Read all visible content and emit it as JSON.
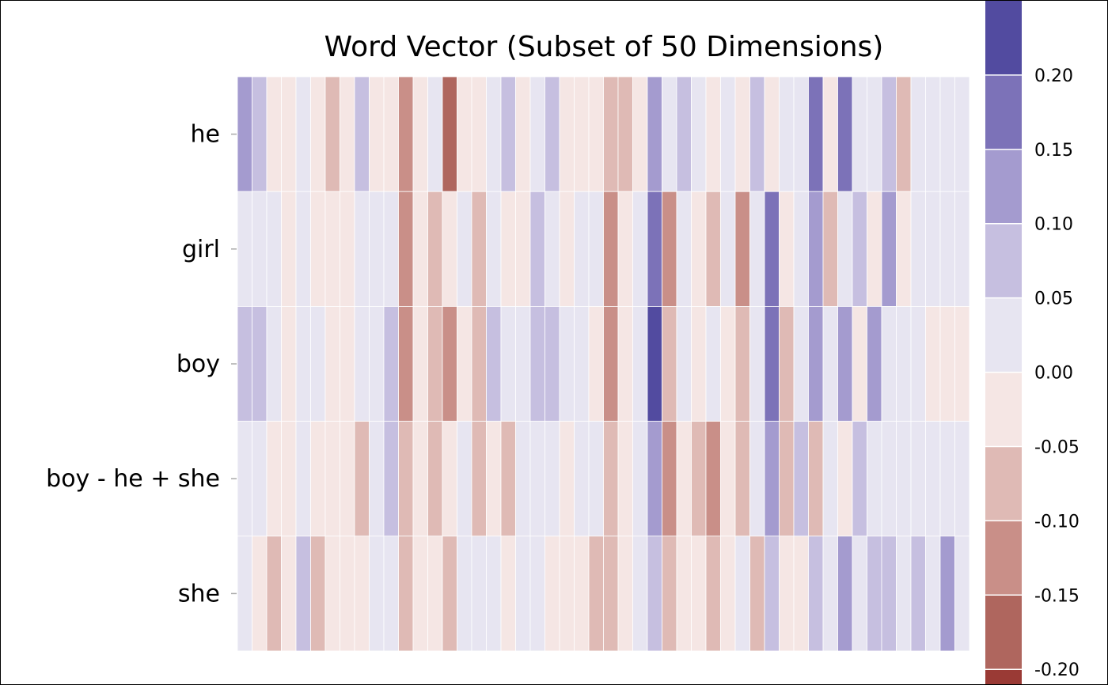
{
  "chart_data": {
    "type": "heatmap",
    "title": "Word Vector (Subset of 50 Dimensions)",
    "rows": [
      "he",
      "girl",
      "boy",
      "boy - he + she",
      "she"
    ],
    "n_dimensions": 50,
    "values": [
      [
        0.12,
        0.07,
        -0.03,
        -0.03,
        0.03,
        -0.03,
        -0.08,
        -0.03,
        0.07,
        -0.03,
        -0.03,
        -0.12,
        -0.03,
        0.03,
        -0.19,
        -0.03,
        -0.03,
        0.03,
        0.07,
        -0.03,
        0.03,
        0.07,
        -0.03,
        -0.03,
        -0.03,
        -0.08,
        -0.08,
        -0.03,
        0.12,
        0.03,
        0.07,
        0.03,
        -0.03,
        0.03,
        -0.03,
        0.07,
        -0.03,
        0.03,
        0.03,
        0.17,
        -0.03,
        0.17,
        0.03,
        0.03,
        0.07,
        -0.08,
        0.03,
        0.03,
        0.03,
        0.03
      ],
      [
        0.03,
        0.03,
        0.03,
        -0.03,
        0.03,
        -0.03,
        -0.03,
        -0.03,
        0.03,
        0.03,
        0.03,
        -0.12,
        -0.03,
        -0.08,
        -0.03,
        0.03,
        -0.08,
        0.03,
        -0.03,
        -0.03,
        0.07,
        0.03,
        -0.03,
        0.03,
        0.03,
        -0.12,
        -0.03,
        0.03,
        0.17,
        -0.12,
        0.03,
        -0.03,
        -0.08,
        0.03,
        -0.12,
        0.03,
        0.17,
        -0.03,
        0.03,
        0.12,
        -0.08,
        0.03,
        0.07,
        -0.03,
        0.12,
        -0.03,
        0.03,
        0.03,
        0.03,
        0.03
      ],
      [
        0.07,
        0.07,
        0.03,
        -0.03,
        0.03,
        0.03,
        -0.03,
        -0.03,
        0.03,
        0.03,
        0.07,
        -0.12,
        -0.03,
        -0.08,
        -0.12,
        -0.03,
        -0.08,
        0.07,
        0.03,
        0.03,
        0.07,
        0.07,
        0.03,
        0.03,
        -0.03,
        -0.12,
        -0.03,
        0.03,
        0.22,
        -0.08,
        0.03,
        -0.03,
        0.03,
        -0.03,
        -0.08,
        0.03,
        0.17,
        -0.08,
        0.03,
        0.12,
        0.03,
        0.12,
        -0.03,
        0.12,
        0.03,
        0.03,
        0.03,
        -0.03,
        -0.03,
        -0.03
      ],
      [
        0.03,
        0.03,
        -0.03,
        -0.03,
        0.03,
        -0.03,
        -0.03,
        -0.03,
        -0.08,
        0.03,
        0.07,
        -0.08,
        -0.03,
        -0.08,
        -0.03,
        0.03,
        -0.08,
        -0.03,
        -0.08,
        0.03,
        0.03,
        0.03,
        -0.03,
        0.03,
        0.03,
        -0.08,
        -0.03,
        0.03,
        0.12,
        -0.12,
        -0.03,
        -0.08,
        -0.12,
        -0.03,
        -0.08,
        0.03,
        0.12,
        -0.08,
        0.07,
        -0.08,
        0.03,
        -0.03,
        0.07,
        0.03,
        0.03,
        0.03,
        0.03,
        0.03,
        0.03,
        0.03
      ],
      [
        0.03,
        -0.03,
        -0.08,
        -0.03,
        0.07,
        -0.08,
        -0.03,
        -0.03,
        -0.03,
        0.03,
        0.03,
        -0.08,
        -0.03,
        -0.03,
        -0.08,
        0.03,
        0.03,
        0.03,
        -0.03,
        0.03,
        0.03,
        -0.03,
        -0.03,
        -0.03,
        -0.08,
        -0.08,
        -0.03,
        0.03,
        0.07,
        -0.08,
        -0.03,
        -0.03,
        -0.08,
        -0.03,
        0.03,
        -0.08,
        0.07,
        -0.03,
        -0.03,
        0.07,
        0.03,
        0.12,
        0.03,
        0.07,
        0.07,
        0.03,
        0.07,
        0.03,
        0.12,
        0.03
      ]
    ],
    "colorbar": {
      "ticks": [
        "0.20",
        "0.15",
        "0.10",
        "0.05",
        "0.00",
        "-0.05",
        "-0.10",
        "-0.15",
        "-0.20"
      ],
      "tick_values": [
        0.2,
        0.15,
        0.1,
        0.05,
        0.0,
        -0.05,
        -0.1,
        -0.15,
        -0.2
      ],
      "bins": [
        {
          "lo": 0.2,
          "hi": 0.25,
          "color": "#524ba0"
        },
        {
          "lo": 0.15,
          "hi": 0.2,
          "color": "#7c72b8"
        },
        {
          "lo": 0.1,
          "hi": 0.15,
          "color": "#a49bcf"
        },
        {
          "lo": 0.05,
          "hi": 0.1,
          "color": "#c6bfe0"
        },
        {
          "lo": 0.0,
          "hi": 0.05,
          "color": "#e7e5f1"
        },
        {
          "lo": -0.05,
          "hi": 0.0,
          "color": "#f5e6e4"
        },
        {
          "lo": -0.1,
          "hi": -0.05,
          "color": "#dfbab5"
        },
        {
          "lo": -0.15,
          "hi": -0.1,
          "color": "#c98f88"
        },
        {
          "lo": -0.2,
          "hi": -0.15,
          "color": "#af665e"
        },
        {
          "lo": -0.25,
          "hi": -0.2,
          "color": "#9a3a35"
        }
      ],
      "range": [
        -0.21,
        0.25
      ]
    }
  }
}
